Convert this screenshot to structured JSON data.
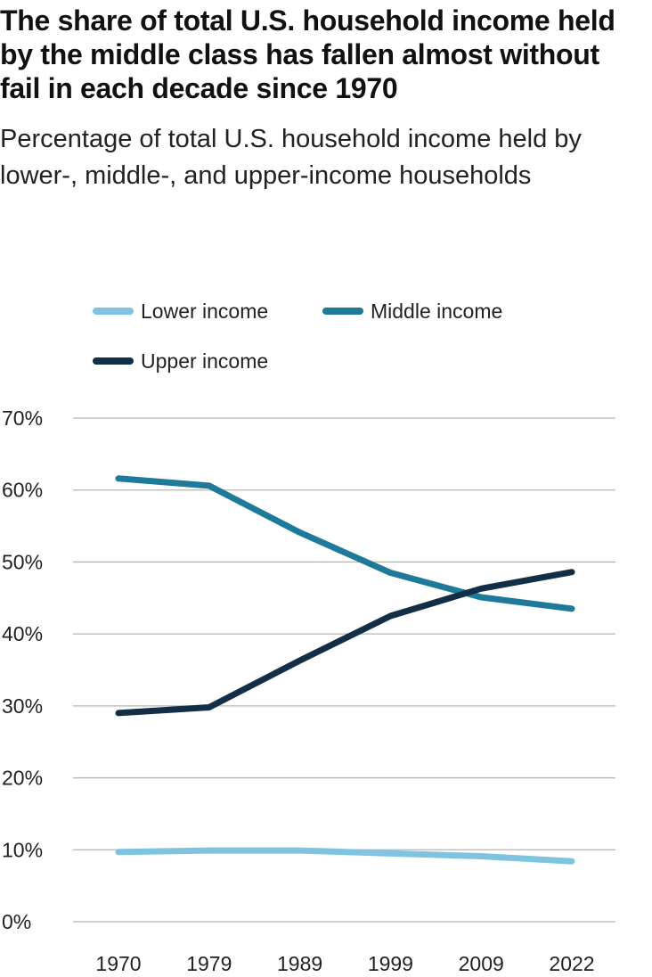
{
  "title": "The share of total U.S. household income held by the middle class has fallen almost without fail in each decade since 1970",
  "subtitle": "Percentage of total U.S. household income held by lower-, middle-, and upper-income households",
  "chart_data": {
    "type": "line",
    "x": [
      "1970",
      "1979",
      "1989",
      "1999",
      "2009",
      "2022"
    ],
    "series": [
      {
        "name": "Lower income",
        "color": "#7ec4e0",
        "values": [
          9.7,
          9.9,
          9.9,
          9.5,
          9.1,
          8.4
        ]
      },
      {
        "name": "Middle income",
        "color": "#1f7a99",
        "values": [
          61.6,
          60.6,
          54.1,
          48.5,
          45.1,
          43.5
        ]
      },
      {
        "name": "Upper income",
        "color": "#132f48",
        "values": [
          29.0,
          29.8,
          36.3,
          42.5,
          46.3,
          48.6
        ]
      }
    ],
    "ylim": [
      0,
      70
    ],
    "yticks": [
      "0%",
      "10%",
      "20%",
      "30%",
      "40%",
      "50%",
      "60%",
      "70%"
    ],
    "grid": true,
    "legend_position": "top"
  }
}
